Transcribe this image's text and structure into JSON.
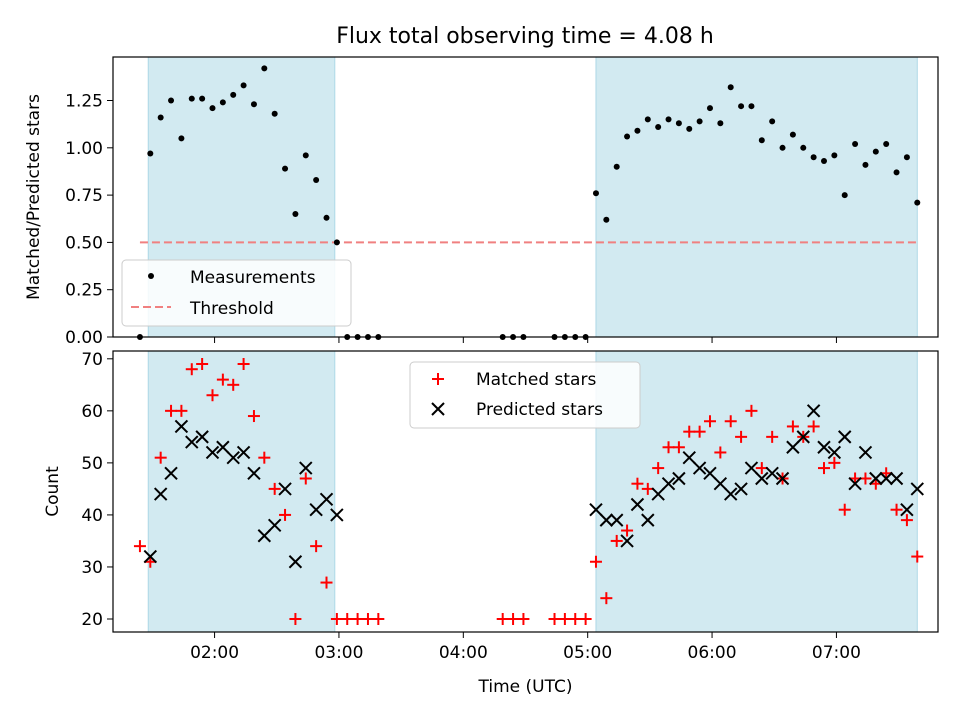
{
  "title": "Flux total observing time = 4.08 h",
  "chart_data": [
    {
      "type": "scatter",
      "ylabel": "Matched/Predicted stars",
      "xlim": [
        "01:11",
        "07:49"
      ],
      "ylim": [
        0,
        1.48
      ],
      "yticks": [
        0.0,
        0.25,
        0.5,
        0.75,
        1.0,
        1.25
      ],
      "yticklabels": [
        "0.00",
        "0.25",
        "0.50",
        "0.75",
        "1.00",
        "1.25"
      ],
      "shaded_intervals": [
        [
          "01:28",
          "02:58"
        ],
        [
          "05:04",
          "07:39"
        ]
      ],
      "shade_color": "#add8e6",
      "threshold": {
        "name": "Threshold",
        "y": 0.5,
        "x_range": [
          "01:24",
          "07:39"
        ],
        "color": "#f08080",
        "style": "dashed"
      },
      "legend": {
        "position": "lower-left",
        "entries": [
          "Measurements",
          "Threshold"
        ]
      },
      "series": [
        {
          "name": "Measurements",
          "marker": "dot",
          "color": "#000000",
          "points": [
            [
              "01:24",
              0.0
            ],
            [
              "01:29",
              0.97
            ],
            [
              "01:34",
              1.16
            ],
            [
              "01:39",
              1.25
            ],
            [
              "01:44",
              1.05
            ],
            [
              "01:49",
              1.26
            ],
            [
              "01:54",
              1.26
            ],
            [
              "01:59",
              1.21
            ],
            [
              "02:04",
              1.24
            ],
            [
              "02:09",
              1.28
            ],
            [
              "02:14",
              1.33
            ],
            [
              "02:19",
              1.23
            ],
            [
              "02:24",
              1.42
            ],
            [
              "02:29",
              1.18
            ],
            [
              "02:34",
              0.89
            ],
            [
              "02:39",
              0.65
            ],
            [
              "02:44",
              0.96
            ],
            [
              "02:49",
              0.83
            ],
            [
              "02:54",
              0.63
            ],
            [
              "02:59",
              0.5
            ],
            [
              "03:04",
              0.0
            ],
            [
              "03:09",
              0.0
            ],
            [
              "03:14",
              0.0
            ],
            [
              "03:19",
              0.0
            ],
            [
              "04:19",
              0.0
            ],
            [
              "04:24",
              0.0
            ],
            [
              "04:29",
              0.0
            ],
            [
              "04:44",
              0.0
            ],
            [
              "04:49",
              0.0
            ],
            [
              "04:54",
              0.0
            ],
            [
              "04:59",
              0.0
            ],
            [
              "05:04",
              0.76
            ],
            [
              "05:09",
              0.62
            ],
            [
              "05:14",
              0.9
            ],
            [
              "05:19",
              1.06
            ],
            [
              "05:24",
              1.09
            ],
            [
              "05:29",
              1.15
            ],
            [
              "05:34",
              1.11
            ],
            [
              "05:39",
              1.15
            ],
            [
              "05:44",
              1.13
            ],
            [
              "05:49",
              1.1
            ],
            [
              "05:54",
              1.14
            ],
            [
              "05:59",
              1.21
            ],
            [
              "06:04",
              1.13
            ],
            [
              "06:09",
              1.32
            ],
            [
              "06:14",
              1.22
            ],
            [
              "06:19",
              1.22
            ],
            [
              "06:24",
              1.04
            ],
            [
              "06:29",
              1.14
            ],
            [
              "06:34",
              1.0
            ],
            [
              "06:39",
              1.07
            ],
            [
              "06:44",
              1.0
            ],
            [
              "06:49",
              0.95
            ],
            [
              "06:54",
              0.93
            ],
            [
              "06:59",
              0.96
            ],
            [
              "07:04",
              0.75
            ],
            [
              "07:09",
              1.02
            ],
            [
              "07:14",
              0.91
            ],
            [
              "07:19",
              0.98
            ],
            [
              "07:24",
              1.02
            ],
            [
              "07:29",
              0.87
            ],
            [
              "07:34",
              0.95
            ],
            [
              "07:39",
              0.71
            ]
          ]
        }
      ]
    },
    {
      "type": "scatter",
      "xlabel": "Time (UTC)",
      "ylabel": "Count",
      "xlim": [
        "01:11",
        "07:49"
      ],
      "ylim": [
        17.5,
        71.5
      ],
      "xticks": [
        "02:00",
        "03:00",
        "04:00",
        "05:00",
        "06:00",
        "07:00"
      ],
      "yticks": [
        20,
        30,
        40,
        50,
        60,
        70
      ],
      "shaded_intervals": [
        [
          "01:28",
          "02:58"
        ],
        [
          "05:04",
          "07:39"
        ]
      ],
      "shade_color": "#add8e6",
      "legend": {
        "position": "upper-center",
        "entries": [
          "Matched stars",
          "Predicted stars"
        ]
      },
      "series": [
        {
          "name": "Matched stars",
          "marker": "plus",
          "color": "#ff0000",
          "points": [
            [
              "01:24",
              34
            ],
            [
              "01:29",
              31
            ],
            [
              "01:34",
              51
            ],
            [
              "01:39",
              60
            ],
            [
              "01:44",
              60
            ],
            [
              "01:49",
              68
            ],
            [
              "01:54",
              69
            ],
            [
              "01:59",
              63
            ],
            [
              "02:04",
              66
            ],
            [
              "02:09",
              65
            ],
            [
              "02:14",
              69
            ],
            [
              "02:19",
              59
            ],
            [
              "02:24",
              51
            ],
            [
              "02:29",
              45
            ],
            [
              "02:34",
              40
            ],
            [
              "02:39",
              20
            ],
            [
              "02:44",
              47
            ],
            [
              "02:49",
              34
            ],
            [
              "02:54",
              27
            ],
            [
              "02:59",
              20
            ],
            [
              "03:04",
              20
            ],
            [
              "03:09",
              20
            ],
            [
              "03:14",
              20
            ],
            [
              "03:19",
              20
            ],
            [
              "04:19",
              20
            ],
            [
              "04:24",
              20
            ],
            [
              "04:29",
              20
            ],
            [
              "04:44",
              20
            ],
            [
              "04:49",
              20
            ],
            [
              "04:54",
              20
            ],
            [
              "04:59",
              20
            ],
            [
              "05:04",
              31
            ],
            [
              "05:09",
              24
            ],
            [
              "05:14",
              35
            ],
            [
              "05:19",
              37
            ],
            [
              "05:24",
              46
            ],
            [
              "05:29",
              45
            ],
            [
              "05:34",
              49
            ],
            [
              "05:39",
              53
            ],
            [
              "05:44",
              53
            ],
            [
              "05:49",
              56
            ],
            [
              "05:54",
              56
            ],
            [
              "05:59",
              58
            ],
            [
              "06:04",
              52
            ],
            [
              "06:09",
              58
            ],
            [
              "06:14",
              55
            ],
            [
              "06:19",
              60
            ],
            [
              "06:24",
              49
            ],
            [
              "06:29",
              55
            ],
            [
              "06:34",
              47
            ],
            [
              "06:39",
              57
            ],
            [
              "06:44",
              55
            ],
            [
              "06:49",
              57
            ],
            [
              "06:54",
              49
            ],
            [
              "06:59",
              50
            ],
            [
              "07:04",
              41
            ],
            [
              "07:09",
              47
            ],
            [
              "07:14",
              47
            ],
            [
              "07:19",
              46
            ],
            [
              "07:24",
              48
            ],
            [
              "07:29",
              41
            ],
            [
              "07:34",
              39
            ],
            [
              "07:39",
              32
            ]
          ]
        },
        {
          "name": "Predicted stars",
          "marker": "x",
          "color": "#000000",
          "points": [
            [
              "01:29",
              32
            ],
            [
              "01:34",
              44
            ],
            [
              "01:39",
              48
            ],
            [
              "01:44",
              57
            ],
            [
              "01:49",
              54
            ],
            [
              "01:54",
              55
            ],
            [
              "01:59",
              52
            ],
            [
              "02:04",
              53
            ],
            [
              "02:09",
              51
            ],
            [
              "02:14",
              52
            ],
            [
              "02:19",
              48
            ],
            [
              "02:24",
              36
            ],
            [
              "02:29",
              38
            ],
            [
              "02:34",
              45
            ],
            [
              "02:39",
              31
            ],
            [
              "02:44",
              49
            ],
            [
              "02:49",
              41
            ],
            [
              "02:54",
              43
            ],
            [
              "02:59",
              40
            ],
            [
              "05:04",
              41
            ],
            [
              "05:09",
              39
            ],
            [
              "05:14",
              39
            ],
            [
              "05:19",
              35
            ],
            [
              "05:24",
              42
            ],
            [
              "05:29",
              39
            ],
            [
              "05:34",
              44
            ],
            [
              "05:39",
              46
            ],
            [
              "05:44",
              47
            ],
            [
              "05:49",
              51
            ],
            [
              "05:54",
              49
            ],
            [
              "05:59",
              48
            ],
            [
              "06:04",
              46
            ],
            [
              "06:09",
              44
            ],
            [
              "06:14",
              45
            ],
            [
              "06:19",
              49
            ],
            [
              "06:24",
              47
            ],
            [
              "06:29",
              48
            ],
            [
              "06:34",
              47
            ],
            [
              "06:39",
              53
            ],
            [
              "06:44",
              55
            ],
            [
              "06:49",
              60
            ],
            [
              "06:54",
              53
            ],
            [
              "06:59",
              52
            ],
            [
              "07:04",
              55
            ],
            [
              "07:09",
              46
            ],
            [
              "07:14",
              52
            ],
            [
              "07:19",
              47
            ],
            [
              "07:24",
              47
            ],
            [
              "07:29",
              47
            ],
            [
              "07:34",
              41
            ],
            [
              "07:39",
              45
            ]
          ]
        }
      ]
    }
  ]
}
